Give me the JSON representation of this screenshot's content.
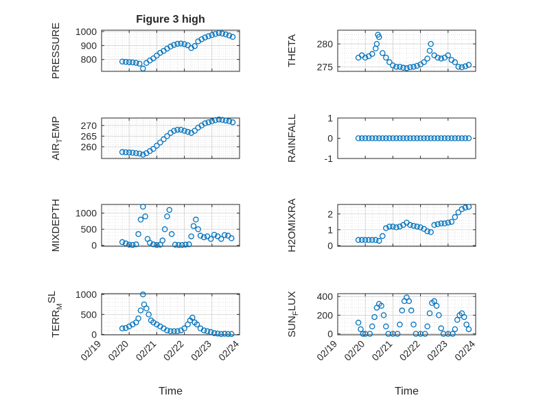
{
  "chart_data": [
    {
      "type": "scatter",
      "title": "Figure 3 high",
      "ylabel": "PRESSURE",
      "xlim": [
        "02/19",
        "02/24"
      ],
      "ylim": [
        715,
        1010
      ],
      "yticks": [
        "800",
        "900",
        "1000"
      ],
      "xticks": [],
      "grid": true,
      "color": "#0072BD",
      "x": [
        "02/19 18:00",
        "02/19 21:00",
        "02/20 00:00",
        "02/20 03:00",
        "02/20 06:00",
        "02/20 09:00",
        "02/20 12:00",
        "02/20 15:00",
        "02/20 18:00",
        "02/20 21:00",
        "02/21 00:00",
        "02/21 03:00",
        "02/21 06:00",
        "02/21 09:00",
        "02/21 12:00",
        "02/21 15:00",
        "02/21 18:00",
        "02/21 21:00",
        "02/22 00:00",
        "02/22 03:00",
        "02/22 06:00",
        "02/22 09:00",
        "02/22 12:00",
        "02/22 15:00",
        "02/22 18:00",
        "02/22 21:00",
        "02/23 00:00",
        "02/23 03:00",
        "02/23 06:00",
        "02/23 09:00",
        "02/23 12:00",
        "02/23 15:00",
        "02/23 18:00"
      ],
      "y": [
        785,
        783,
        781,
        779,
        776,
        770,
        735,
        775,
        793,
        808,
        828,
        848,
        862,
        878,
        893,
        905,
        912,
        914,
        910,
        902,
        882,
        896,
        930,
        945,
        958,
        967,
        975,
        983,
        990,
        986,
        980,
        972,
        962
      ]
    },
    {
      "type": "scatter",
      "title": "",
      "ylabel": "THETA",
      "xlim": [
        "02/19",
        "02/24"
      ],
      "ylim": [
        274,
        283
      ],
      "yticks": [
        "275",
        "280"
      ],
      "xticks": [],
      "grid": true,
      "color": "#0072BD",
      "x": [
        "02/19 18:00",
        "02/19 21:00",
        "02/20 00:00",
        "02/20 03:00",
        "02/20 06:00",
        "02/20 09:00",
        "02/20 10:00",
        "02/20 11:00",
        "02/20 12:00",
        "02/20 15:00",
        "02/20 18:00",
        "02/20 21:00",
        "02/21 00:00",
        "02/21 03:00",
        "02/21 06:00",
        "02/21 09:00",
        "02/21 12:00",
        "02/21 15:00",
        "02/21 18:00",
        "02/21 21:00",
        "02/22 00:00",
        "02/22 03:00",
        "02/22 06:00",
        "02/22 08:00",
        "02/22 09:00",
        "02/22 12:00",
        "02/22 15:00",
        "02/22 18:00",
        "02/22 21:00",
        "02/23 00:00",
        "02/23 03:00",
        "02/23 06:00",
        "02/23 09:00",
        "02/23 12:00",
        "02/23 15:00",
        "02/23 18:00"
      ],
      "y": [
        277,
        277.5,
        277,
        277.3,
        277.8,
        279,
        280,
        282,
        281.5,
        278,
        277,
        276,
        275.3,
        275,
        275,
        274.8,
        274.7,
        274.9,
        275,
        275.2,
        275.5,
        276,
        276.8,
        278.5,
        280,
        277.5,
        277,
        276.8,
        277,
        277.5,
        276.5,
        276,
        275,
        274.9,
        275.1,
        275.4
      ]
    },
    {
      "type": "scatter",
      "title": "",
      "ylabel": "AIR_TEMP",
      "xlim": [
        "02/19",
        "02/24"
      ],
      "ylim": [
        254.5,
        273.5
      ],
      "yticks": [
        "260",
        "265",
        "270"
      ],
      "xticks": [],
      "grid": true,
      "color": "#0072BD",
      "x": [
        "02/19 18:00",
        "02/19 21:00",
        "02/20 00:00",
        "02/20 03:00",
        "02/20 06:00",
        "02/20 09:00",
        "02/20 12:00",
        "02/20 15:00",
        "02/20 18:00",
        "02/20 21:00",
        "02/21 00:00",
        "02/21 03:00",
        "02/21 06:00",
        "02/21 09:00",
        "02/21 12:00",
        "02/21 15:00",
        "02/21 18:00",
        "02/21 21:00",
        "02/22 00:00",
        "02/22 03:00",
        "02/22 06:00",
        "02/22 09:00",
        "02/22 12:00",
        "02/22 15:00",
        "02/22 18:00",
        "02/22 21:00",
        "02/23 00:00",
        "02/23 03:00",
        "02/23 06:00",
        "02/23 09:00",
        "02/23 12:00",
        "02/23 15:00",
        "02/23 18:00"
      ],
      "y": [
        257.5,
        257.4,
        257.3,
        257.2,
        257,
        256.8,
        256.3,
        257,
        258,
        259,
        260.5,
        262,
        263.5,
        265,
        266.5,
        267.5,
        268,
        268,
        267.5,
        267,
        266.5,
        267.5,
        269,
        270,
        271,
        271.5,
        272,
        272.5,
        272.8,
        272.6,
        272.3,
        272,
        271.5
      ]
    },
    {
      "type": "scatter",
      "title": "",
      "ylabel": "RAINFALL",
      "xlim": [
        "02/19",
        "02/24"
      ],
      "ylim": [
        -1,
        1
      ],
      "yticks": [
        "-1",
        "0",
        "1"
      ],
      "xticks": [],
      "grid": false,
      "color": "#0072BD",
      "x": [
        "02/19 18:00",
        "02/19 21:00",
        "02/20 00:00",
        "02/20 03:00",
        "02/20 06:00",
        "02/20 09:00",
        "02/20 12:00",
        "02/20 15:00",
        "02/20 18:00",
        "02/20 21:00",
        "02/21 00:00",
        "02/21 03:00",
        "02/21 06:00",
        "02/21 09:00",
        "02/21 12:00",
        "02/21 15:00",
        "02/21 18:00",
        "02/21 21:00",
        "02/22 00:00",
        "02/22 03:00",
        "02/22 06:00",
        "02/22 09:00",
        "02/22 12:00",
        "02/22 15:00",
        "02/22 18:00",
        "02/22 21:00",
        "02/23 00:00",
        "02/23 03:00",
        "02/23 06:00",
        "02/23 09:00",
        "02/23 12:00",
        "02/23 15:00",
        "02/23 18:00"
      ],
      "y": [
        0,
        0,
        0,
        0,
        0,
        0,
        0,
        0,
        0,
        0,
        0,
        0,
        0,
        0,
        0,
        0,
        0,
        0,
        0,
        0,
        0,
        0,
        0,
        0,
        0,
        0,
        0,
        0,
        0,
        0,
        0,
        0,
        0
      ]
    },
    {
      "type": "scatter",
      "title": "",
      "ylabel": "MIXDEPTH",
      "xlim": [
        "02/19",
        "02/24"
      ],
      "ylim": [
        -30,
        1270
      ],
      "yticks": [
        "0",
        "500",
        "1000"
      ],
      "xticks": [],
      "grid": true,
      "color": "#0072BD",
      "x": [
        "02/19 18:00",
        "02/19 21:00",
        "02/20 00:00",
        "02/20 03:00",
        "02/20 06:00",
        "02/20 08:00",
        "02/20 10:00",
        "02/20 12:00",
        "02/20 14:00",
        "02/20 16:00",
        "02/20 18:00",
        "02/20 21:00",
        "02/21 00:00",
        "02/21 03:00",
        "02/21 05:00",
        "02/21 07:00",
        "02/21 09:00",
        "02/21 11:00",
        "02/21 13:00",
        "02/21 16:00",
        "02/21 19:00",
        "02/21 22:00",
        "02/22 01:00",
        "02/22 04:00",
        "02/22 06:00",
        "02/22 08:00",
        "02/22 10:00",
        "02/22 12:00",
        "02/22 14:00",
        "02/22 17:00",
        "02/22 20:00",
        "02/22 23:00",
        "02/23 02:00",
        "02/23 05:00",
        "02/23 08:00",
        "02/23 11:00",
        "02/23 14:00",
        "02/23 17:00"
      ],
      "y": [
        100,
        60,
        20,
        10,
        30,
        350,
        800,
        1200,
        900,
        200,
        80,
        30,
        10,
        20,
        150,
        500,
        900,
        1100,
        350,
        20,
        10,
        10,
        20,
        30,
        280,
        600,
        800,
        500,
        300,
        250,
        280,
        200,
        330,
        280,
        200,
        320,
        300,
        220
      ]
    },
    {
      "type": "scatter",
      "title": "",
      "ylabel": "H2OMIXRA",
      "xlim": [
        "02/19",
        "02/24"
      ],
      "ylim": [
        -0.05,
        2.6
      ],
      "yticks": [
        "0",
        "1",
        "2"
      ],
      "xticks": [],
      "grid": true,
      "color": "#0072BD",
      "x": [
        "02/19 18:00",
        "02/19 21:00",
        "02/20 00:00",
        "02/20 03:00",
        "02/20 06:00",
        "02/20 09:00",
        "02/20 12:00",
        "02/20 15:00",
        "02/20 18:00",
        "02/20 21:00",
        "02/21 00:00",
        "02/21 03:00",
        "02/21 06:00",
        "02/21 09:00",
        "02/21 12:00",
        "02/21 15:00",
        "02/21 18:00",
        "02/21 21:00",
        "02/22 00:00",
        "02/22 03:00",
        "02/22 06:00",
        "02/22 09:00",
        "02/22 12:00",
        "02/22 15:00",
        "02/22 18:00",
        "02/22 21:00",
        "02/23 00:00",
        "02/23 03:00",
        "02/23 06:00",
        "02/23 09:00",
        "02/23 12:00",
        "02/23 15:00",
        "02/23 18:00"
      ],
      "y": [
        0.35,
        0.35,
        0.35,
        0.35,
        0.35,
        0.35,
        0.3,
        0.6,
        1.1,
        1.2,
        1.2,
        1.15,
        1.2,
        1.3,
        1.45,
        1.3,
        1.25,
        1.2,
        1.15,
        1.05,
        0.9,
        0.85,
        1.3,
        1.35,
        1.4,
        1.4,
        1.45,
        1.5,
        1.8,
        2.1,
        2.3,
        2.4,
        2.45
      ]
    },
    {
      "type": "scatter",
      "title": "",
      "ylabel": "TERR_MSL",
      "xlim": [
        "02/19",
        "02/24"
      ],
      "ylim": [
        -10,
        1020
      ],
      "yticks": [
        "0",
        "500",
        "1000"
      ],
      "xticks": [
        "02/19",
        "02/20",
        "02/21",
        "02/22",
        "02/23",
        "02/24"
      ],
      "xlabel": "Time",
      "grid": true,
      "color": "#0072BD",
      "x": [
        "02/19 18:00",
        "02/19 21:00",
        "02/20 00:00",
        "02/20 03:00",
        "02/20 06:00",
        "02/20 08:00",
        "02/20 10:00",
        "02/20 12:00",
        "02/20 13:00",
        "02/20 15:00",
        "02/20 17:00",
        "02/20 19:00",
        "02/20 21:00",
        "02/21 00:00",
        "02/21 03:00",
        "02/21 06:00",
        "02/21 09:00",
        "02/21 12:00",
        "02/21 15:00",
        "02/21 18:00",
        "02/21 21:00",
        "02/22 00:00",
        "02/22 03:00",
        "02/22 05:00",
        "02/22 07:00",
        "02/22 09:00",
        "02/22 11:00",
        "02/22 14:00",
        "02/22 17:00",
        "02/22 20:00",
        "02/22 23:00",
        "02/23 02:00",
        "02/23 05:00",
        "02/23 08:00",
        "02/23 11:00",
        "02/23 14:00",
        "02/23 17:00"
      ],
      "y": [
        150,
        160,
        200,
        250,
        300,
        400,
        600,
        1000,
        750,
        650,
        500,
        350,
        300,
        250,
        200,
        150,
        100,
        80,
        80,
        80,
        100,
        150,
        250,
        350,
        420,
        300,
        250,
        150,
        100,
        80,
        60,
        30,
        20,
        10,
        15,
        10,
        10
      ]
    },
    {
      "type": "scatter",
      "title": "",
      "ylabel": "SUN_FLUX",
      "xlim": [
        "02/19",
        "02/24"
      ],
      "ylim": [
        -10,
        430
      ],
      "yticks": [
        "0",
        "200",
        "400"
      ],
      "xticks": [
        "02/19",
        "02/20",
        "02/21",
        "02/22",
        "02/23",
        "02/24"
      ],
      "xlabel": "Time",
      "grid": true,
      "color": "#0072BD",
      "x": [
        "02/19 18:00",
        "02/19 20:00",
        "02/19 22:00",
        "02/20 00:00",
        "02/20 04:00",
        "02/20 06:00",
        "02/20 08:00",
        "02/20 10:00",
        "02/20 12:00",
        "02/20 14:00",
        "02/20 16:00",
        "02/20 18:00",
        "02/20 20:00",
        "02/21 00:00",
        "02/21 04:00",
        "02/21 06:00",
        "02/21 08:00",
        "02/21 10:00",
        "02/21 12:00",
        "02/21 14:00",
        "02/21 16:00",
        "02/21 18:00",
        "02/21 20:00",
        "02/22 00:00",
        "02/22 04:00",
        "02/22 06:00",
        "02/22 08:00",
        "02/22 10:00",
        "02/22 12:00",
        "02/22 14:00",
        "02/22 16:00",
        "02/22 18:00",
        "02/22 20:00",
        "02/23 00:00",
        "02/23 04:00",
        "02/23 06:00",
        "02/23 08:00",
        "02/23 10:00",
        "02/23 12:00",
        "02/23 14:00",
        "02/23 16:00",
        "02/23 18:00"
      ],
      "y": [
        120,
        50,
        0,
        0,
        0,
        80,
        180,
        280,
        320,
        300,
        200,
        80,
        0,
        0,
        0,
        100,
        250,
        350,
        390,
        350,
        250,
        100,
        0,
        0,
        0,
        80,
        220,
        330,
        350,
        300,
        200,
        60,
        0,
        0,
        0,
        50,
        150,
        200,
        220,
        180,
        100,
        50
      ]
    }
  ]
}
